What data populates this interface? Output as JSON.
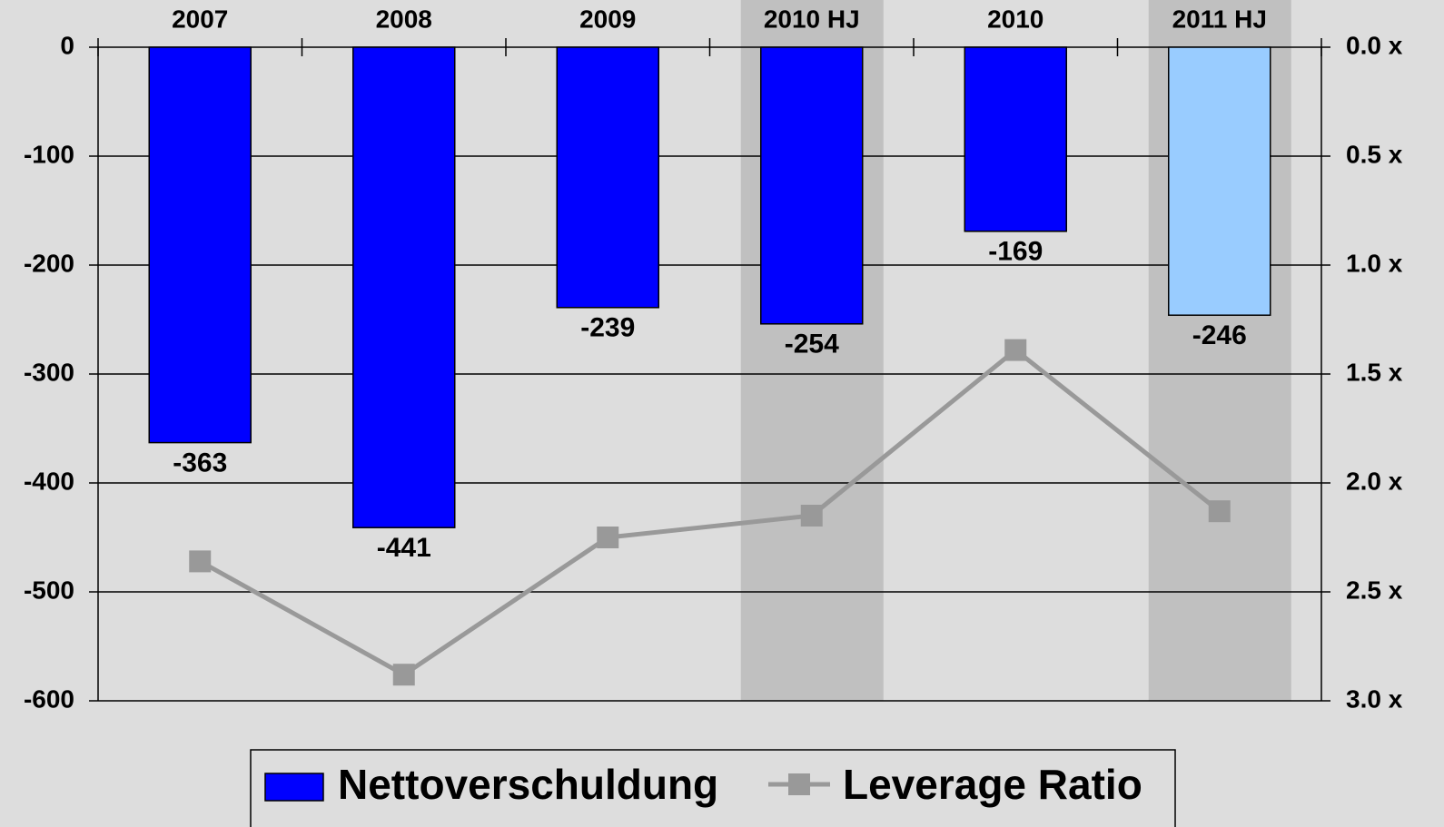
{
  "chart_data": {
    "type": "bar",
    "categories": [
      "2007",
      "2008",
      "2009",
      "2010 HJ",
      "2010",
      "2011 HJ"
    ],
    "shaded": [
      false,
      false,
      false,
      true,
      false,
      true
    ],
    "shade_color": "#c0c0c0",
    "series": [
      {
        "name": "Nettoverschuldung",
        "type": "bar",
        "color": "#0000ff",
        "colors": [
          "#0000ff",
          "#0000ff",
          "#0000ff",
          "#0000ff",
          "#0000ff",
          "#99ccff"
        ],
        "values": [
          -363,
          -441,
          -239,
          -254,
          -169,
          -246
        ]
      },
      {
        "name": "Leverage Ratio",
        "type": "line",
        "axis": "y2",
        "color": "#999999",
        "values": [
          2.36,
          2.88,
          2.25,
          2.15,
          1.39,
          2.13
        ]
      }
    ],
    "ylim": [
      -600,
      0
    ],
    "yticks": [
      0,
      -100,
      -200,
      -300,
      -400,
      -500,
      -600
    ],
    "y2lim": [
      3,
      0
    ],
    "y2ticks": [
      {
        "value": 0,
        "label": "0.0 x"
      },
      {
        "value": 0.5,
        "label": "0.5 x"
      },
      {
        "value": 1,
        "label": "1.0 x"
      },
      {
        "value": 1.5,
        "label": "1.5 x"
      },
      {
        "value": 2,
        "label": "2.0 x"
      },
      {
        "value": 2.5,
        "label": "2.5 x"
      },
      {
        "value": 3,
        "label": "3.0 x"
      }
    ],
    "grid": true,
    "legend": "bottom"
  }
}
